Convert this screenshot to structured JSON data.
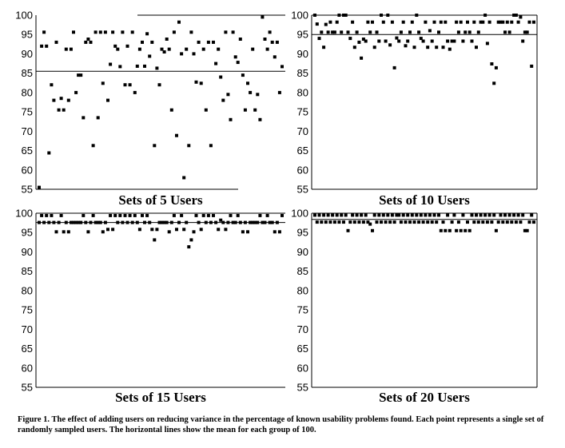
{
  "chart_data": [
    {
      "type": "scatter",
      "title": "Sets of 5 Users",
      "ylim": [
        55,
        100
      ],
      "yticks": [
        100,
        95,
        90,
        85,
        80,
        75,
        70,
        65,
        60,
        55
      ],
      "mean": 85.5,
      "values": [
        55.5,
        92,
        95.6,
        92,
        64.4,
        82,
        78,
        93,
        75.5,
        78.5,
        75.5,
        91.2,
        78,
        91.2,
        95.6,
        80,
        84.5,
        84.5,
        73.5,
        93,
        93.8,
        93,
        66.3,
        95.6,
        73.5,
        95.6,
        82.4,
        95.6,
        78,
        87.3,
        95.6,
        92,
        91.2,
        86.7,
        95.6,
        82,
        92,
        82,
        95.6,
        80,
        86.8,
        91.2,
        93,
        86.8,
        95.2,
        89.4,
        93,
        66.3,
        86.3,
        82,
        91.2,
        90.5,
        93.8,
        91.2,
        75.5,
        95.6,
        68.9,
        98.2,
        90,
        58,
        91.2,
        66.3,
        95.6,
        90,
        82.7,
        93,
        82.4,
        91.2,
        75.5,
        93,
        66.3,
        93,
        87.5,
        91.2,
        84,
        78,
        95.6,
        79.5,
        73,
        95.6,
        89.2,
        87.8,
        93.8,
        84.5,
        75.5,
        82.4,
        80,
        91.2,
        75.5,
        79.5,
        73,
        99.5,
        93.8,
        91.2,
        95.6,
        93,
        89.2,
        93,
        80,
        86.7
      ]
    },
    {
      "type": "scatter",
      "title": "Sets of 10 Users",
      "ylim": [
        55,
        100
      ],
      "yticks": [
        100,
        95,
        90,
        85,
        80,
        75,
        70,
        65,
        60,
        55
      ],
      "mean": 95,
      "values": [
        100,
        97.7,
        94,
        95.6,
        91.7,
        97.6,
        95.6,
        98.2,
        95.6,
        95.6,
        98.2,
        100,
        95.6,
        100,
        100,
        95.6,
        94,
        98.2,
        91.7,
        95.6,
        93,
        88.9,
        93.8,
        93.3,
        98.2,
        95.6,
        98.2,
        91.7,
        95.6,
        93.3,
        100,
        98.2,
        93.3,
        100,
        92.3,
        98.2,
        86.4,
        94.1,
        93.3,
        95.6,
        98.2,
        92.1,
        93.3,
        95.6,
        98.2,
        91.7,
        100,
        95.6,
        94,
        93.3,
        98.2,
        91.7,
        96,
        93.3,
        98.2,
        91.7,
        95.6,
        98.2,
        91.7,
        98.2,
        93.3,
        91.2,
        93.3,
        93.3,
        98.2,
        95.6,
        98.2,
        93.3,
        95.6,
        98.2,
        95.6,
        93.3,
        98.2,
        91.7,
        95.6,
        98.2,
        98.2,
        100,
        92.7,
        98.2,
        87.4,
        82.4,
        86.4,
        98.2,
        98.2,
        98.2,
        95.6,
        98.2,
        95.6,
        98.2,
        100,
        100,
        98.2,
        99.5,
        93.3,
        95.6,
        95.6,
        98.2,
        86.8,
        98.2
      ]
    },
    {
      "type": "scatter",
      "title": "Sets of 15 Users",
      "ylim": [
        55,
        100
      ],
      "yticks": [
        100,
        95,
        90,
        85,
        80,
        75,
        70,
        65,
        60,
        55
      ],
      "mean": 97.6,
      "values": [
        97.6,
        99.4,
        97.6,
        99.4,
        97.6,
        99.4,
        97.6,
        95.2,
        97.6,
        99.4,
        95.2,
        97.6,
        95.2,
        97.6,
        97.6,
        97.6,
        97.6,
        97.6,
        99.4,
        97.6,
        95.2,
        97.6,
        99.4,
        97.6,
        97.6,
        97.6,
        95.2,
        97.6,
        95.8,
        99.4,
        95.8,
        99.4,
        97.6,
        99.4,
        97.6,
        99.4,
        97.6,
        99.4,
        97.6,
        99.4,
        97.6,
        95.8,
        99.4,
        97.6,
        99.4,
        97.6,
        95.8,
        93.1,
        95.8,
        97.6,
        97.6,
        97.6,
        97.6,
        95.2,
        97.6,
        99.4,
        95.8,
        97.6,
        99.4,
        95.8,
        97.6,
        91.3,
        93.1,
        95.2,
        99.4,
        97.6,
        95.8,
        99.4,
        97.6,
        99.4,
        97.6,
        99.4,
        97.6,
        95.8,
        98.2,
        97.6,
        95.8,
        97.6,
        99.4,
        97.6,
        97.6,
        99.4,
        97.6,
        95.2,
        97.6,
        95.2,
        97.6,
        97.6,
        97.6,
        97.6,
        99.4,
        97.6,
        97.6,
        99.4,
        97.6,
        97.6,
        95.2,
        97.6,
        95.2,
        99.4
      ]
    },
    {
      "type": "scatter",
      "title": "Sets of 20 Users",
      "ylim": [
        55,
        100
      ],
      "yticks": [
        100,
        95,
        90,
        85,
        80,
        75,
        70,
        65,
        60,
        55
      ],
      "mean": 98.4,
      "values": [
        99.5,
        97.7,
        99.5,
        97.7,
        99.5,
        97.7,
        99.5,
        97.7,
        99.5,
        97.7,
        99.5,
        97.7,
        99.5,
        97.7,
        99.5,
        95.5,
        97.7,
        99.5,
        97.7,
        99.5,
        97.7,
        99.5,
        97.7,
        99.5,
        97.7,
        97.2,
        95.5,
        99.5,
        97.7,
        99.5,
        97.7,
        99.5,
        97.7,
        99.5,
        97.7,
        99.5,
        97.7,
        99.5,
        99.5,
        97.7,
        99.5,
        97.7,
        99.5,
        97.7,
        99.5,
        97.7,
        99.5,
        97.7,
        99.5,
        97.7,
        99.5,
        97.7,
        99.5,
        97.7,
        99.5,
        97.7,
        99.5,
        95.5,
        97.7,
        95.5,
        99.5,
        95.5,
        97.7,
        99.5,
        95.5,
        97.7,
        95.5,
        99.5,
        95.5,
        97.7,
        95.5,
        99.5,
        97.7,
        99.5,
        97.7,
        99.5,
        97.7,
        99.5,
        97.7,
        99.5,
        97.7,
        99.5,
        95.5,
        97.7,
        99.5,
        97.7,
        99.5,
        97.7,
        99.5,
        97.7,
        99.5,
        97.7,
        99.5,
        97.7,
        99.5,
        95.5,
        95.5,
        97.7,
        99.5,
        97.7
      ]
    }
  ],
  "caption": "Figure 1. The effect of adding users on reducing variance in the percentage of known usability problems found. Each point represents a single set of randomly sampled users. The horizontal lines show the mean for each group of 100."
}
